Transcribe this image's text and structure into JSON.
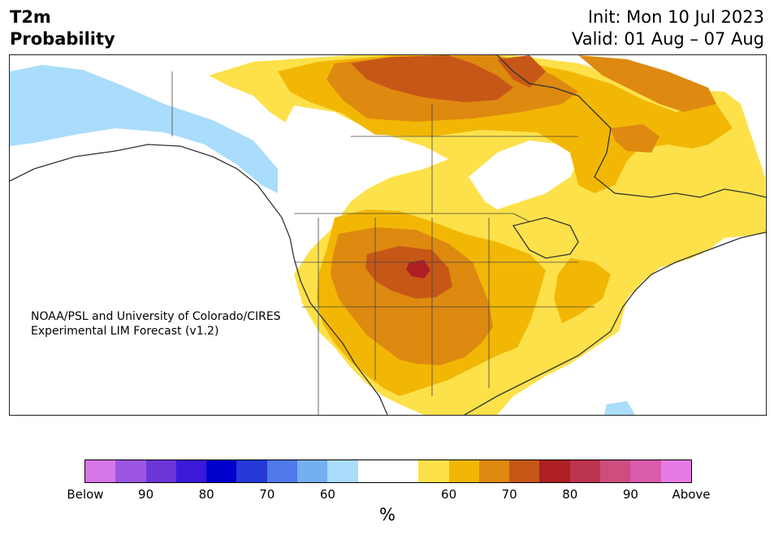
{
  "title_left": [
    "T2m",
    "Probability"
  ],
  "title_right": [
    "Init: Mon 10 Jul 2023",
    "Valid: 01 Aug – 07 Aug"
  ],
  "credit": [
    "NOAA/PSL and University of Colorado/CIRES",
    "Experimental LIM Forecast (v1.2)"
  ],
  "colorbar": {
    "colors": [
      "#d676e8",
      "#9b55e0",
      "#6c35d8",
      "#3a1ad8",
      "#0000cc",
      "#2638d6",
      "#4f78e8",
      "#74afef",
      "#aadcfb",
      "#ffffff",
      "#ffffff",
      "#fde14a",
      "#f2b705",
      "#de8910",
      "#c65717",
      "#ae1f23",
      "#bd344f",
      "#cd4d7e",
      "#da5aac",
      "#e87ae3"
    ],
    "tick_labels": [
      "Below",
      "90",
      "80",
      "70",
      "60",
      "60",
      "70",
      "80",
      "90",
      "Above"
    ],
    "unit": "%"
  },
  "map_colors": {
    "below_light": "#aadcfb",
    "above_60": "#fde14a",
    "above_65": "#f2b705",
    "above_70": "#de8910",
    "above_75": "#c65717",
    "above_80": "#ae1f23",
    "coast": "#333333"
  }
}
